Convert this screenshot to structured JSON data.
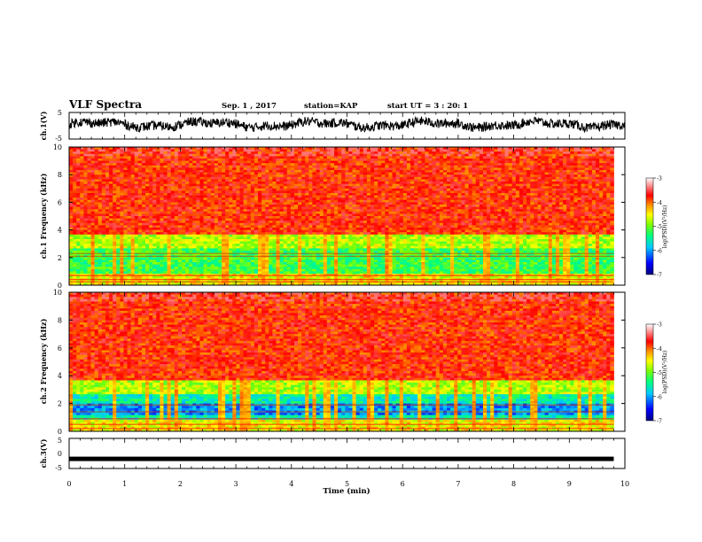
{
  "header": {
    "title": "VLF Spectra",
    "date": "Sep. 1 , 2017",
    "station": "station=KAP",
    "start_ut": "start UT = 3 : 20: 1"
  },
  "chart_data": [
    {
      "type": "line",
      "panel": "ch1-waveform",
      "ylabel": "ch.1(V)",
      "ylim": [
        -5,
        5
      ],
      "yticks": [
        "5",
        "-5"
      ],
      "xlim": [
        0,
        10
      ],
      "description_values": {
        "baseline_V": 0.5,
        "amplitude_V": 2.5
      }
    },
    {
      "type": "heatmap",
      "panel": "ch1-spectrogram",
      "ylabel": "ch.1 Frequency (kHz)",
      "ylim": [
        0,
        10
      ],
      "yticks": [
        "0",
        "2",
        "4",
        "6",
        "8",
        "10"
      ],
      "xlim": [
        0,
        10
      ],
      "data_end_min": 9.8,
      "colorbar": {
        "label": "log(PSD)(V²/Hz)",
        "range": [
          -7,
          -3
        ],
        "ticks": [
          "-3",
          "-4",
          "-5",
          "-6",
          "-7"
        ]
      }
    },
    {
      "type": "heatmap",
      "panel": "ch2-spectrogram",
      "ylabel": "ch.2 Frequency (kHz)",
      "ylim": [
        0,
        10
      ],
      "yticks": [
        "0",
        "2",
        "4",
        "6",
        "8",
        "10"
      ],
      "xlim": [
        0,
        10
      ],
      "data_end_min": 9.8,
      "colorbar": {
        "label": "log(PSD)(V²/Hz)",
        "range": [
          -7,
          -3
        ],
        "ticks": [
          "-3",
          "-4",
          "-5",
          "-6",
          "-7"
        ]
      }
    },
    {
      "type": "line",
      "panel": "ch3-waveform",
      "ylabel": "ch.3(V)",
      "ylim": [
        -5,
        5
      ],
      "yticks": [
        "5",
        "0",
        "-5"
      ],
      "xlim": [
        0,
        10
      ],
      "xlabel": "Time (min)",
      "xticks": [
        "0",
        "1",
        "2",
        "3",
        "4",
        "5",
        "6",
        "7",
        "8",
        "9",
        "10"
      ],
      "constant_value_V": -1.8
    }
  ],
  "colors": {
    "colormap": [
      "#000080",
      "#0000ff",
      "#00c0ff",
      "#00ff90",
      "#40ff00",
      "#c0ff00",
      "#ffff00",
      "#ffc000",
      "#ff6000",
      "#ff0000",
      "#ff8080",
      "#ffffff"
    ]
  }
}
